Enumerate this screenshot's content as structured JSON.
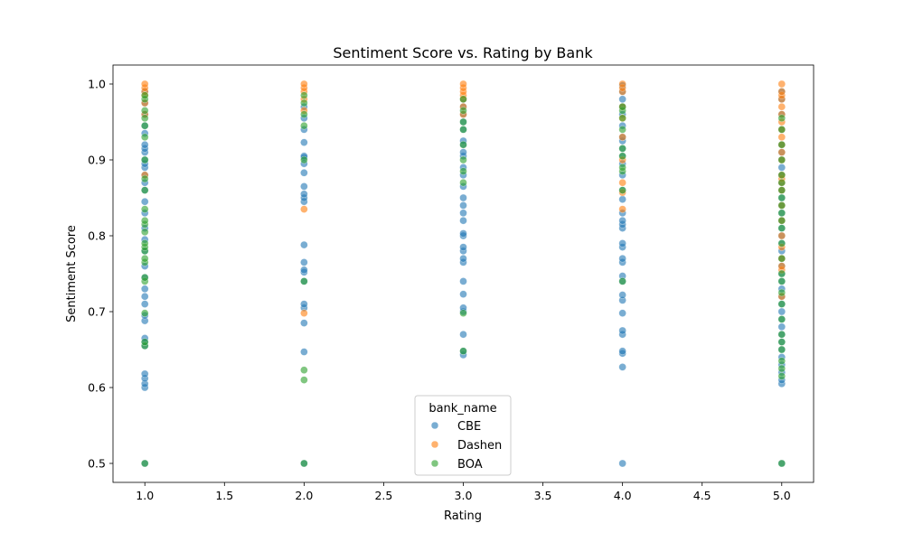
{
  "chart_data": {
    "type": "scatter",
    "title": "Sentiment Score vs. Rating by Bank",
    "xlabel": "Rating",
    "ylabel": "Sentiment Score",
    "xlim": [
      0.8,
      5.2
    ],
    "ylim": [
      0.475,
      1.025
    ],
    "xticks": [
      "1.0",
      "1.5",
      "2.0",
      "2.5",
      "3.0",
      "3.5",
      "4.0",
      "4.5",
      "5.0"
    ],
    "yticks": [
      "0.5",
      "0.6",
      "0.7",
      "0.8",
      "0.9",
      "1.0"
    ],
    "grid": false,
    "legend": {
      "title": "bank_name",
      "position": "lower-center"
    },
    "series": [
      {
        "name": "CBE",
        "color": "#1f77b4",
        "x": [
          1,
          1,
          1,
          1,
          1,
          1,
          1,
          1,
          1,
          1,
          1,
          1,
          1,
          1,
          1,
          1,
          1,
          1,
          1,
          1,
          1,
          1,
          1,
          1,
          1,
          1,
          1,
          1,
          1,
          1,
          1,
          1,
          1,
          1,
          2,
          2,
          2,
          2,
          2,
          2,
          2,
          2,
          2,
          2,
          2,
          2,
          2,
          2,
          2,
          2,
          2,
          2,
          2,
          2,
          2,
          2,
          3,
          3,
          3,
          3,
          3,
          3,
          3,
          3,
          3,
          3,
          3,
          3,
          3,
          3,
          3,
          3,
          3,
          3,
          3,
          3,
          3,
          3,
          3,
          3,
          3,
          3,
          3,
          3,
          3,
          4,
          4,
          4,
          4,
          4,
          4,
          4,
          4,
          4,
          4,
          4,
          4,
          4,
          4,
          4,
          4,
          4,
          4,
          4,
          4,
          4,
          4,
          4,
          4,
          4,
          4,
          4,
          4,
          4,
          4,
          4,
          4,
          4,
          5,
          5,
          5,
          5,
          5,
          5,
          5,
          5,
          5,
          5,
          5,
          5,
          5,
          5,
          5,
          5,
          5,
          5,
          5,
          5,
          5,
          5,
          5,
          5,
          5,
          5,
          5,
          5,
          5,
          5,
          5,
          5,
          5,
          5,
          5,
          5,
          5,
          5
        ],
        "y": [
          0.5,
          0.6,
          0.605,
          0.612,
          0.618,
          0.655,
          0.66,
          0.665,
          0.688,
          0.695,
          0.71,
          0.72,
          0.73,
          0.745,
          0.76,
          0.78,
          0.795,
          0.81,
          0.83,
          0.845,
          0.86,
          0.87,
          0.88,
          0.89,
          0.895,
          0.9,
          0.91,
          0.915,
          0.92,
          0.935,
          0.945,
          0.96,
          0.975,
          0.99,
          0.5,
          0.647,
          0.685,
          0.705,
          0.71,
          0.74,
          0.752,
          0.755,
          0.765,
          0.788,
          0.845,
          0.85,
          0.855,
          0.865,
          0.883,
          0.895,
          0.903,
          0.905,
          0.923,
          0.94,
          0.955,
          0.97,
          0.643,
          0.648,
          0.67,
          0.7,
          0.705,
          0.723,
          0.74,
          0.765,
          0.77,
          0.78,
          0.785,
          0.8,
          0.803,
          0.82,
          0.83,
          0.84,
          0.85,
          0.865,
          0.88,
          0.89,
          0.905,
          0.91,
          0.92,
          0.925,
          0.94,
          0.95,
          0.96,
          0.97,
          0.98,
          0.5,
          0.627,
          0.645,
          0.648,
          0.67,
          0.675,
          0.698,
          0.715,
          0.722,
          0.74,
          0.747,
          0.765,
          0.77,
          0.785,
          0.79,
          0.81,
          0.815,
          0.82,
          0.83,
          0.848,
          0.86,
          0.88,
          0.895,
          0.905,
          0.915,
          0.925,
          0.93,
          0.945,
          0.96,
          0.97,
          0.98,
          0.99,
          0.998,
          0.5,
          0.605,
          0.61,
          0.62,
          0.63,
          0.64,
          0.65,
          0.66,
          0.67,
          0.68,
          0.69,
          0.7,
          0.71,
          0.72,
          0.73,
          0.74,
          0.75,
          0.76,
          0.77,
          0.78,
          0.79,
          0.8,
          0.81,
          0.82,
          0.83,
          0.84,
          0.85,
          0.86,
          0.87,
          0.88,
          0.89,
          0.9,
          0.91,
          0.92,
          0.94,
          0.96,
          0.98,
          0.99
        ]
      },
      {
        "name": "Dashen",
        "color": "#ff7f0e",
        "x": [
          1,
          1,
          1,
          1,
          1,
          1,
          1,
          2,
          2,
          2,
          2,
          2,
          2,
          2,
          3,
          3,
          3,
          3,
          3,
          3,
          3,
          4,
          4,
          4,
          4,
          4,
          4,
          4,
          4,
          4,
          4,
          5,
          5,
          5,
          5,
          5,
          5,
          5,
          5,
          5,
          5,
          5,
          5,
          5,
          5,
          5,
          5,
          5,
          5,
          5,
          5,
          5,
          5,
          5,
          5
        ],
        "y": [
          0.88,
          0.96,
          0.975,
          0.985,
          0.99,
          0.995,
          1.0,
          0.698,
          0.835,
          0.965,
          0.98,
          0.99,
          0.995,
          1.0,
          0.96,
          0.97,
          0.98,
          0.985,
          0.99,
          0.995,
          1.0,
          0.835,
          0.857,
          0.87,
          0.9,
          0.93,
          0.955,
          0.97,
          0.99,
          0.995,
          1.0,
          0.72,
          0.755,
          0.76,
          0.77,
          0.785,
          0.8,
          0.82,
          0.84,
          0.86,
          0.87,
          0.875,
          0.88,
          0.9,
          0.91,
          0.92,
          0.93,
          0.94,
          0.95,
          0.96,
          0.97,
          0.98,
          0.985,
          0.99,
          1.0
        ]
      },
      {
        "name": "BOA",
        "color": "#2ca02c",
        "x": [
          1,
          1,
          1,
          1,
          1,
          1,
          1,
          1,
          1,
          1,
          1,
          1,
          1,
          1,
          1,
          1,
          1,
          1,
          1,
          1,
          1,
          1,
          1,
          1,
          2,
          2,
          2,
          2,
          2,
          2,
          2,
          2,
          2,
          3,
          3,
          3,
          3,
          3,
          3,
          3,
          3,
          3,
          3,
          4,
          4,
          4,
          4,
          4,
          4,
          4,
          4,
          4,
          4,
          5,
          5,
          5,
          5,
          5,
          5,
          5,
          5,
          5,
          5,
          5,
          5,
          5,
          5,
          5,
          5,
          5,
          5,
          5,
          5,
          5,
          5,
          5,
          5,
          5,
          5
        ],
        "y": [
          0.5,
          0.655,
          0.66,
          0.698,
          0.74,
          0.745,
          0.765,
          0.77,
          0.78,
          0.785,
          0.79,
          0.805,
          0.815,
          0.82,
          0.835,
          0.86,
          0.875,
          0.9,
          0.93,
          0.945,
          0.955,
          0.965,
          0.98,
          0.985,
          0.5,
          0.61,
          0.623,
          0.74,
          0.9,
          0.945,
          0.96,
          0.975,
          0.985,
          0.648,
          0.698,
          0.87,
          0.885,
          0.9,
          0.92,
          0.94,
          0.95,
          0.965,
          0.98,
          0.74,
          0.86,
          0.885,
          0.89,
          0.905,
          0.915,
          0.94,
          0.955,
          0.965,
          0.97,
          0.5,
          0.615,
          0.625,
          0.635,
          0.65,
          0.66,
          0.67,
          0.69,
          0.71,
          0.725,
          0.74,
          0.75,
          0.77,
          0.79,
          0.81,
          0.82,
          0.83,
          0.84,
          0.85,
          0.86,
          0.87,
          0.88,
          0.9,
          0.92,
          0.94,
          0.955
        ]
      }
    ]
  }
}
